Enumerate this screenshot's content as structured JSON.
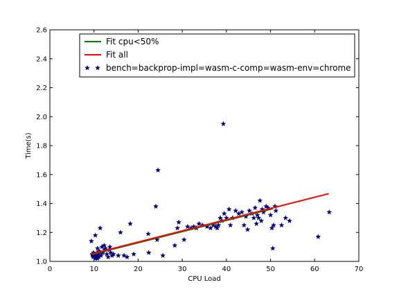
{
  "chart_data": {
    "type": "scatter",
    "title": "",
    "xlabel": "CPU Load",
    "ylabel": "Time(s)",
    "xlim": [
      0,
      70
    ],
    "ylim": [
      1.0,
      2.6
    ],
    "xticks": [
      0,
      10,
      20,
      30,
      40,
      50,
      60,
      70
    ],
    "yticks": [
      1.0,
      1.2,
      1.4,
      1.6,
      1.8,
      2.0,
      2.2,
      2.4,
      2.6
    ],
    "grid": false,
    "legend_position": "top-center",
    "lines": [
      {
        "name": "Fit cpu<50%",
        "color": "#008000",
        "x": [
          9.5,
          50.5
        ],
        "y": [
          1.048,
          1.364
        ]
      },
      {
        "name": "Fit all",
        "color": "#ff0000",
        "x": [
          9.5,
          63.2
        ],
        "y": [
          1.052,
          1.468
        ]
      }
    ],
    "scatter": {
      "name": "bench=backprop-impl=wasm-c-comp=wasm-env=chrome",
      "color": "#00007a",
      "marker": "star",
      "points": [
        [
          9.4,
          1.14
        ],
        [
          9.6,
          1.05
        ],
        [
          9.7,
          1.04
        ],
        [
          9.8,
          1.03
        ],
        [
          9.9,
          1.06
        ],
        [
          10.0,
          1.05
        ],
        [
          10.1,
          1.04
        ],
        [
          10.2,
          1.03
        ],
        [
          10.3,
          1.02
        ],
        [
          10.4,
          1.05
        ],
        [
          10.5,
          1.04
        ],
        [
          10.6,
          1.03
        ],
        [
          10.7,
          1.06
        ],
        [
          10.8,
          1.02
        ],
        [
          10.9,
          1.04
        ],
        [
          11.0,
          1.05
        ],
        [
          11.1,
          1.03
        ],
        [
          11.2,
          1.07
        ],
        [
          10.3,
          1.18
        ],
        [
          10.8,
          1.09
        ],
        [
          11.4,
          1.06
        ],
        [
          11.6,
          1.04
        ],
        [
          11.8,
          1.1
        ],
        [
          12.0,
          1.06
        ],
        [
          11.4,
          1.23
        ],
        [
          12.3,
          1.11
        ],
        [
          12.6,
          1.09
        ],
        [
          12.9,
          1.05
        ],
        [
          13.2,
          1.03
        ],
        [
          13.5,
          1.08
        ],
        [
          13.8,
          1.06
        ],
        [
          14.1,
          1.04
        ],
        [
          14.4,
          1.05
        ],
        [
          12.4,
          1.08
        ],
        [
          13.6,
          1.1
        ],
        [
          15.5,
          1.04
        ],
        [
          16.0,
          1.2
        ],
        [
          16.8,
          1.04
        ],
        [
          17.5,
          1.03
        ],
        [
          18.2,
          1.26
        ],
        [
          19.0,
          1.05
        ],
        [
          22.3,
          1.19
        ],
        [
          22.4,
          1.06
        ],
        [
          24.0,
          1.38
        ],
        [
          24.3,
          1.15
        ],
        [
          24.5,
          1.63
        ],
        [
          25.6,
          1.04
        ],
        [
          28.3,
          1.11
        ],
        [
          28.9,
          1.23
        ],
        [
          29.2,
          1.27
        ],
        [
          30.4,
          1.15
        ],
        [
          31.2,
          1.24
        ],
        [
          32.0,
          1.23
        ],
        [
          32.6,
          1.24
        ],
        [
          33.2,
          1.23
        ],
        [
          33.8,
          1.26
        ],
        [
          34.6,
          1.25
        ],
        [
          35.6,
          1.24
        ],
        [
          36.4,
          1.23
        ],
        [
          37.0,
          1.25
        ],
        [
          37.6,
          1.24
        ],
        [
          37.9,
          1.23
        ],
        [
          38.2,
          1.25
        ],
        [
          38.6,
          1.3
        ],
        [
          39.0,
          1.28
        ],
        [
          39.3,
          1.95
        ],
        [
          39.5,
          1.33
        ],
        [
          40.0,
          1.3
        ],
        [
          40.6,
          1.36
        ],
        [
          40.9,
          1.25
        ],
        [
          41.4,
          1.3
        ],
        [
          42.1,
          1.35
        ],
        [
          42.8,
          1.33
        ],
        [
          43.5,
          1.34
        ],
        [
          44.0,
          1.25
        ],
        [
          44.4,
          1.31
        ],
        [
          44.8,
          1.22
        ],
        [
          45.2,
          1.35
        ],
        [
          45.8,
          1.33
        ],
        [
          46.2,
          1.3
        ],
        [
          46.5,
          1.37
        ],
        [
          46.8,
          1.26
        ],
        [
          47.0,
          1.32
        ],
        [
          47.3,
          1.3
        ],
        [
          47.6,
          1.42
        ],
        [
          47.9,
          1.28
        ],
        [
          48.1,
          1.36
        ],
        [
          48.4,
          1.34
        ],
        [
          49.0,
          1.38
        ],
        [
          49.4,
          1.37
        ],
        [
          50.0,
          1.32
        ],
        [
          50.3,
          1.23
        ],
        [
          50.5,
          1.09
        ],
        [
          50.7,
          1.25
        ],
        [
          51.0,
          1.38
        ],
        [
          51.2,
          1.35
        ],
        [
          52.5,
          1.25
        ],
        [
          53.4,
          1.3
        ],
        [
          54.3,
          1.28
        ],
        [
          60.8,
          1.17
        ],
        [
          63.3,
          1.34
        ]
      ]
    }
  }
}
